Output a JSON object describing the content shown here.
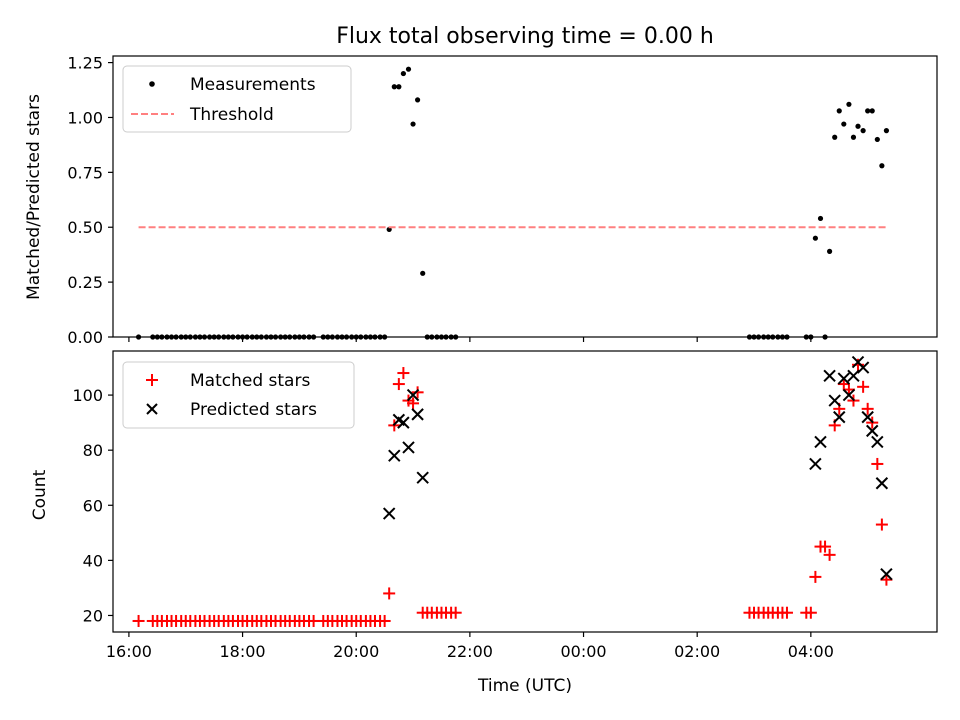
{
  "chart_data": {
    "title": "Flux total observing time = 0.00 h",
    "xlabel": "Time (UTC)",
    "x_range_hours": [
      15.72,
      30.22
    ],
    "x_ticks": [
      {
        "h": 16,
        "label": "16:00"
      },
      {
        "h": 18,
        "label": "18:00"
      },
      {
        "h": 20,
        "label": "20:00"
      },
      {
        "h": 22,
        "label": "22:00"
      },
      {
        "h": 24,
        "label": "00:00"
      },
      {
        "h": 26,
        "label": "02:00"
      },
      {
        "h": 28,
        "label": "04:00"
      }
    ],
    "panels": [
      {
        "type": "scatter",
        "ylabel": "Matched/Predicted stars",
        "ylim": [
          0,
          1.28
        ],
        "y_ticks": [
          "0.00",
          "0.25",
          "0.50",
          "0.75",
          "1.00",
          "1.25"
        ],
        "y_tick_values": [
          0,
          0.25,
          0.5,
          0.75,
          1.0,
          1.25
        ],
        "legend": {
          "position": "upper-left",
          "entries": [
            "Measurements",
            "Threshold"
          ]
        },
        "series": [
          {
            "name": "Measurements",
            "marker": "dot",
            "color": "#000000",
            "points": [
              [
                16.17,
                0
              ],
              [
                16.42,
                0
              ],
              [
                16.5,
                0
              ],
              [
                16.58,
                0
              ],
              [
                16.67,
                0
              ],
              [
                16.75,
                0
              ],
              [
                16.83,
                0
              ],
              [
                16.92,
                0
              ],
              [
                17.0,
                0
              ],
              [
                17.08,
                0
              ],
              [
                17.17,
                0
              ],
              [
                17.25,
                0
              ],
              [
                17.33,
                0
              ],
              [
                17.42,
                0
              ],
              [
                17.5,
                0
              ],
              [
                17.58,
                0
              ],
              [
                17.67,
                0
              ],
              [
                17.75,
                0
              ],
              [
                17.83,
                0
              ],
              [
                17.92,
                0
              ],
              [
                18.0,
                0
              ],
              [
                18.08,
                0
              ],
              [
                18.17,
                0
              ],
              [
                18.25,
                0
              ],
              [
                18.33,
                0
              ],
              [
                18.42,
                0
              ],
              [
                18.5,
                0
              ],
              [
                18.58,
                0
              ],
              [
                18.67,
                0
              ],
              [
                18.75,
                0
              ],
              [
                18.83,
                0
              ],
              [
                18.92,
                0
              ],
              [
                19.0,
                0
              ],
              [
                19.08,
                0
              ],
              [
                19.17,
                0
              ],
              [
                19.25,
                0
              ],
              [
                19.42,
                0
              ],
              [
                19.5,
                0
              ],
              [
                19.58,
                0
              ],
              [
                19.67,
                0
              ],
              [
                19.75,
                0
              ],
              [
                19.83,
                0
              ],
              [
                19.92,
                0
              ],
              [
                20.0,
                0
              ],
              [
                20.08,
                0
              ],
              [
                20.17,
                0
              ],
              [
                20.25,
                0
              ],
              [
                20.33,
                0
              ],
              [
                20.42,
                0
              ],
              [
                20.5,
                0
              ],
              [
                20.58,
                0.49
              ],
              [
                20.67,
                1.14
              ],
              [
                20.75,
                1.14
              ],
              [
                20.83,
                1.2
              ],
              [
                20.92,
                1.22
              ],
              [
                21.0,
                0.97
              ],
              [
                21.08,
                1.08
              ],
              [
                21.17,
                0.29
              ],
              [
                21.25,
                0
              ],
              [
                21.33,
                0
              ],
              [
                21.42,
                0
              ],
              [
                21.5,
                0
              ],
              [
                21.58,
                0
              ],
              [
                21.67,
                0
              ],
              [
                21.75,
                0
              ],
              [
                26.92,
                0
              ],
              [
                27.0,
                0
              ],
              [
                27.08,
                0
              ],
              [
                27.17,
                0
              ],
              [
                27.25,
                0
              ],
              [
                27.33,
                0
              ],
              [
                27.42,
                0
              ],
              [
                27.5,
                0
              ],
              [
                27.58,
                0
              ],
              [
                27.92,
                0
              ],
              [
                28.0,
                0
              ],
              [
                28.25,
                0
              ],
              [
                28.08,
                0.45
              ],
              [
                28.17,
                0.54
              ],
              [
                28.33,
                0.39
              ],
              [
                28.42,
                0.91
              ],
              [
                28.5,
                1.03
              ],
              [
                28.58,
                0.97
              ],
              [
                28.67,
                1.06
              ],
              [
                28.75,
                0.91
              ],
              [
                28.83,
                0.96
              ],
              [
                28.92,
                0.94
              ],
              [
                29.0,
                1.03
              ],
              [
                29.08,
                1.03
              ],
              [
                29.17,
                0.9
              ],
              [
                29.25,
                0.78
              ],
              [
                29.33,
                0.94
              ]
            ]
          },
          {
            "name": "Threshold",
            "style": "dashed",
            "color": "#ff8080",
            "x": [
              16.17,
              29.33
            ],
            "y": [
              0.5,
              0.5
            ]
          }
        ]
      },
      {
        "type": "scatter",
        "ylabel": "Count",
        "ylim": [
          14,
          116
        ],
        "y_ticks": [
          "20",
          "40",
          "60",
          "80",
          "100"
        ],
        "y_tick_values": [
          20,
          40,
          60,
          80,
          100
        ],
        "legend": {
          "position": "upper-left",
          "entries": [
            "Matched stars",
            "Predicted stars"
          ]
        },
        "series": [
          {
            "name": "Matched stars",
            "marker": "plus",
            "color": "#ff0000",
            "points": [
              [
                16.17,
                18
              ],
              [
                16.42,
                18
              ],
              [
                16.5,
                18
              ],
              [
                16.58,
                18
              ],
              [
                16.67,
                18
              ],
              [
                16.75,
                18
              ],
              [
                16.83,
                18
              ],
              [
                16.92,
                18
              ],
              [
                17.0,
                18
              ],
              [
                17.08,
                18
              ],
              [
                17.17,
                18
              ],
              [
                17.25,
                18
              ],
              [
                17.33,
                18
              ],
              [
                17.42,
                18
              ],
              [
                17.5,
                18
              ],
              [
                17.58,
                18
              ],
              [
                17.67,
                18
              ],
              [
                17.75,
                18
              ],
              [
                17.83,
                18
              ],
              [
                17.92,
                18
              ],
              [
                18.0,
                18
              ],
              [
                18.08,
                18
              ],
              [
                18.17,
                18
              ],
              [
                18.25,
                18
              ],
              [
                18.33,
                18
              ],
              [
                18.42,
                18
              ],
              [
                18.5,
                18
              ],
              [
                18.58,
                18
              ],
              [
                18.67,
                18
              ],
              [
                18.75,
                18
              ],
              [
                18.83,
                18
              ],
              [
                18.92,
                18
              ],
              [
                19.0,
                18
              ],
              [
                19.08,
                18
              ],
              [
                19.17,
                18
              ],
              [
                19.25,
                18
              ],
              [
                19.42,
                18
              ],
              [
                19.5,
                18
              ],
              [
                19.58,
                18
              ],
              [
                19.67,
                18
              ],
              [
                19.75,
                18
              ],
              [
                19.83,
                18
              ],
              [
                19.92,
                18
              ],
              [
                20.0,
                18
              ],
              [
                20.08,
                18
              ],
              [
                20.17,
                18
              ],
              [
                20.25,
                18
              ],
              [
                20.33,
                18
              ],
              [
                20.42,
                18
              ],
              [
                20.5,
                18
              ],
              [
                20.58,
                28
              ],
              [
                20.67,
                89
              ],
              [
                20.75,
                104
              ],
              [
                20.83,
                108
              ],
              [
                20.92,
                98
              ],
              [
                21.0,
                97
              ],
              [
                21.08,
                101
              ],
              [
                21.17,
                21
              ],
              [
                21.25,
                21
              ],
              [
                21.33,
                21
              ],
              [
                21.42,
                21
              ],
              [
                21.5,
                21
              ],
              [
                21.58,
                21
              ],
              [
                21.67,
                21
              ],
              [
                21.75,
                21
              ],
              [
                26.92,
                21
              ],
              [
                27.0,
                21
              ],
              [
                27.08,
                21
              ],
              [
                27.17,
                21
              ],
              [
                27.25,
                21
              ],
              [
                27.33,
                21
              ],
              [
                27.42,
                21
              ],
              [
                27.5,
                21
              ],
              [
                27.58,
                21
              ],
              [
                27.92,
                21
              ],
              [
                28.0,
                21
              ],
              [
                28.08,
                34
              ],
              [
                28.17,
                45
              ],
              [
                28.25,
                45
              ],
              [
                28.33,
                42
              ],
              [
                28.42,
                89
              ],
              [
                28.5,
                95
              ],
              [
                28.58,
                104
              ],
              [
                28.67,
                102
              ],
              [
                28.75,
                98
              ],
              [
                28.83,
                111
              ],
              [
                28.92,
                103
              ],
              [
                29.0,
                95
              ],
              [
                29.08,
                90
              ],
              [
                29.17,
                75
              ],
              [
                29.25,
                53
              ],
              [
                29.33,
                33
              ]
            ]
          },
          {
            "name": "Predicted stars",
            "marker": "x",
            "color": "#000000",
            "points": [
              [
                20.58,
                57
              ],
              [
                20.67,
                78
              ],
              [
                20.75,
                91
              ],
              [
                20.83,
                90
              ],
              [
                20.92,
                81
              ],
              [
                21.0,
                100
              ],
              [
                21.08,
                93
              ],
              [
                21.17,
                70
              ],
              [
                28.08,
                75
              ],
              [
                28.17,
                83
              ],
              [
                28.33,
                107
              ],
              [
                28.42,
                98
              ],
              [
                28.5,
                92
              ],
              [
                28.58,
                106
              ],
              [
                28.67,
                100
              ],
              [
                28.75,
                107
              ],
              [
                28.83,
                112
              ],
              [
                28.92,
                110
              ],
              [
                29.0,
                92
              ],
              [
                29.08,
                87
              ],
              [
                29.17,
                83
              ],
              [
                29.25,
                68
              ],
              [
                29.33,
                35
              ]
            ]
          }
        ]
      }
    ]
  }
}
